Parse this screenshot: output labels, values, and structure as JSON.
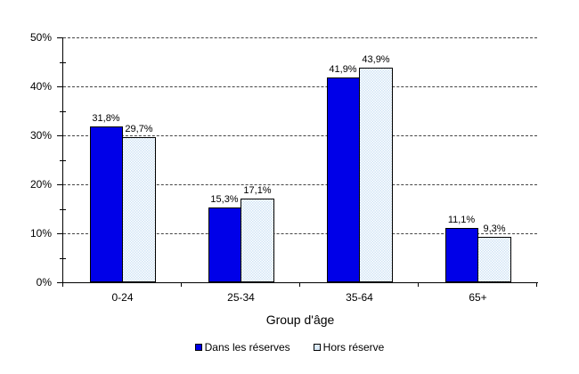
{
  "chart_data": {
    "type": "bar",
    "title": "",
    "xlabel": "Group d'âge",
    "ylabel": "",
    "ylim": [
      0,
      50
    ],
    "grid": "horizontal dashed at major ticks",
    "legend_position": "bottom-center",
    "categories": [
      "0-24",
      "25-34",
      "35-64",
      "65+"
    ],
    "yticks_major": [
      {
        "value": 0,
        "label": "0%"
      },
      {
        "value": 10,
        "label": "10%"
      },
      {
        "value": 20,
        "label": "20%"
      },
      {
        "value": 30,
        "label": "30%"
      },
      {
        "value": 40,
        "label": "40%"
      },
      {
        "value": 50,
        "label": "50%"
      }
    ],
    "yticks_minor": [
      5,
      15,
      25,
      35,
      45
    ],
    "series": [
      {
        "name": "Dans les réserves",
        "color": "#0000e8",
        "pattern": "solid",
        "values": [
          31.8,
          15.3,
          41.9,
          11.1
        ],
        "labels": [
          "31,8%",
          "15,3%",
          "41,9%",
          "11,1%"
        ]
      },
      {
        "name": "Hors réserve",
        "color": "#cfe3f5",
        "pattern": "checker",
        "values": [
          29.7,
          17.1,
          43.9,
          9.3
        ],
        "labels": [
          "29,7%",
          "17,1%",
          "43,9%",
          "9,3%"
        ]
      }
    ]
  }
}
